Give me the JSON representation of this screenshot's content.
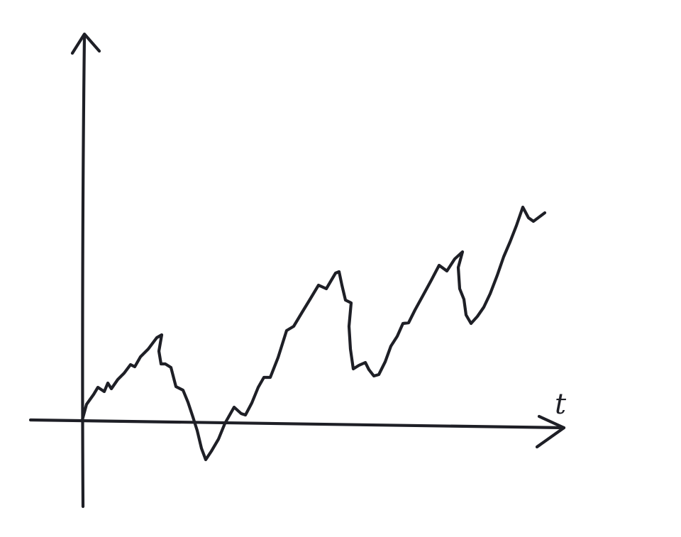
{
  "diagram": {
    "kind": "hand-drawn random walk sketch",
    "ink_color": "#1e1f26",
    "background_color": "#ffffff",
    "x_axis_label": "t",
    "y_axis_label": "",
    "path_starts_at_origin": true
  }
}
